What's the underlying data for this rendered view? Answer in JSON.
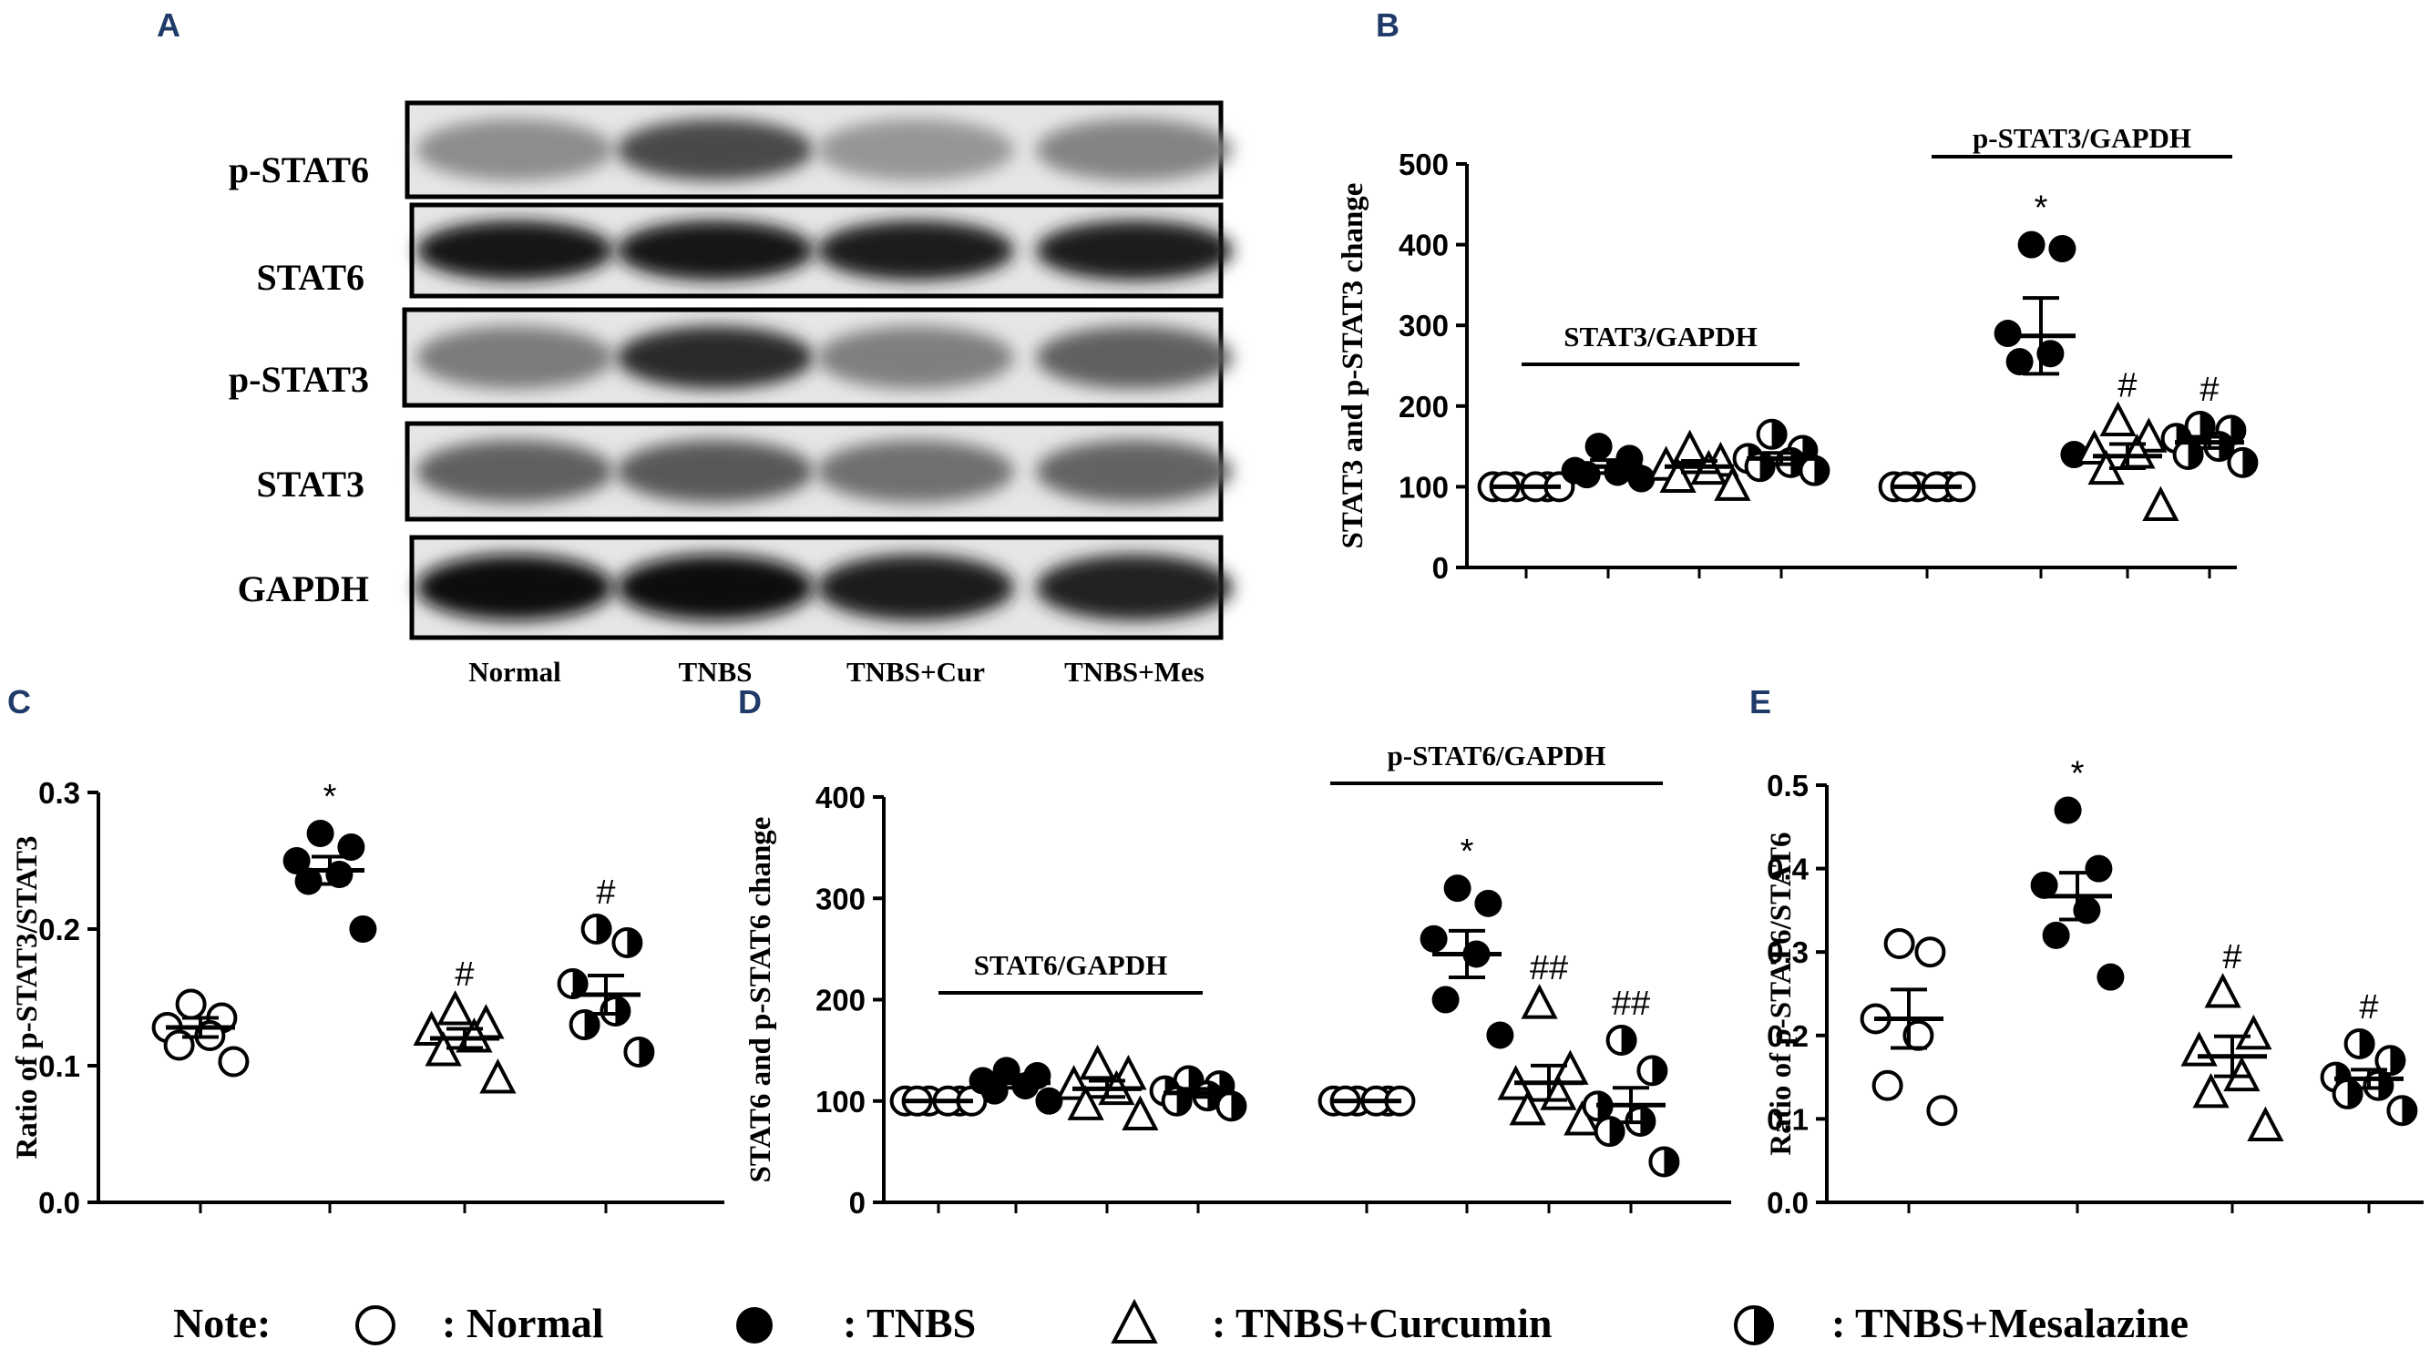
{
  "panels": {
    "A": "A",
    "B": "B",
    "C": "C",
    "D": "D",
    "E": "E"
  },
  "blot": {
    "rows": [
      {
        "label": "p-STAT6",
        "band_darkness": [
          0.42,
          0.72,
          0.38,
          0.46
        ]
      },
      {
        "label": "STAT6",
        "band_darkness": [
          0.95,
          0.95,
          0.92,
          0.93
        ]
      },
      {
        "label": "p-STAT3",
        "band_darkness": [
          0.5,
          0.85,
          0.48,
          0.62
        ]
      },
      {
        "label": "STAT3",
        "band_darkness": [
          0.62,
          0.65,
          0.55,
          0.6
        ]
      },
      {
        "label": "GAPDH",
        "band_darkness": [
          0.97,
          0.97,
          0.93,
          0.9
        ]
      }
    ],
    "lanes": [
      "Normal",
      "TNBS",
      "TNBS+Cur",
      "TNBS+Mes"
    ]
  },
  "legend": {
    "note": "Note:",
    "items": [
      {
        "marker": "open-circle",
        "label": ": Normal"
      },
      {
        "marker": "filled-circle",
        "label": ": TNBS"
      },
      {
        "marker": "open-triangle",
        "label": ": TNBS+Curcumin"
      },
      {
        "marker": "half-filled-circle",
        "label": ": TNBS+Mesalazine"
      }
    ]
  },
  "colors": {
    "ink": "#000000",
    "panel_letter": "#1f3a68"
  },
  "chart_data": [
    {
      "id": "B",
      "type": "scatter",
      "ylabel": "STAT3 and p-STAT3 change",
      "ylim": [
        0,
        500
      ],
      "yticks": [
        0,
        100,
        200,
        300,
        400,
        500
      ],
      "groups": [
        {
          "label": "STAT3/GAPDH",
          "members": [
            0,
            1,
            2,
            3
          ]
        },
        {
          "label": "p-STAT3/GAPDH",
          "members": [
            4,
            5,
            6,
            7
          ]
        }
      ],
      "series": [
        {
          "marker": "open-circle",
          "values": [
            100,
            100,
            100,
            100,
            100,
            100
          ],
          "mean": 100,
          "sem": 0
        },
        {
          "marker": "filled-circle",
          "values": [
            150,
            135,
            120,
            118,
            115,
            110
          ],
          "mean": 125,
          "sem": 8
        },
        {
          "marker": "open-triangle",
          "values": [
            145,
            130,
            125,
            120,
            110,
            100
          ],
          "mean": 125,
          "sem": 7
        },
        {
          "marker": "half-filled-circle",
          "values": [
            165,
            145,
            135,
            130,
            125,
            120
          ],
          "mean": 135,
          "sem": 7
        },
        {
          "marker": "open-circle",
          "values": [
            100,
            100,
            100,
            100,
            100,
            100
          ],
          "mean": 100,
          "sem": 0
        },
        {
          "marker": "filled-circle",
          "values": [
            400,
            395,
            290,
            265,
            255,
            140
          ],
          "mean": 287,
          "sem": 47,
          "sig": "*"
        },
        {
          "marker": "open-triangle",
          "values": [
            180,
            160,
            145,
            140,
            120,
            75
          ],
          "mean": 138,
          "sem": 15,
          "sig": "#"
        },
        {
          "marker": "half-filled-circle",
          "values": [
            175,
            170,
            160,
            150,
            140,
            130
          ],
          "mean": 155,
          "sem": 7,
          "sig": "#"
        }
      ]
    },
    {
      "id": "C",
      "type": "scatter",
      "ylabel": "Ratio of p-STAT3/STAT3",
      "ylim": [
        0,
        0.3
      ],
      "yticks": [
        "0.0",
        "0.1",
        "0.2",
        "0.3"
      ],
      "series": [
        {
          "marker": "open-circle",
          "values": [
            0.145,
            0.135,
            0.128,
            0.122,
            0.115,
            0.103
          ],
          "mean": 0.128,
          "sem": 0.007
        },
        {
          "marker": "filled-circle",
          "values": [
            0.27,
            0.26,
            0.25,
            0.24,
            0.235,
            0.2
          ],
          "mean": 0.243,
          "sem": 0.01,
          "sig": "*"
        },
        {
          "marker": "open-triangle",
          "values": [
            0.14,
            0.13,
            0.125,
            0.12,
            0.11,
            0.09
          ],
          "mean": 0.12,
          "sem": 0.007,
          "sig": "#"
        },
        {
          "marker": "half-filled-circle",
          "values": [
            0.2,
            0.19,
            0.16,
            0.14,
            0.13,
            0.11
          ],
          "mean": 0.152,
          "sem": 0.014,
          "sig": "#"
        }
      ]
    },
    {
      "id": "D",
      "type": "scatter",
      "ylabel": "STAT6 and p-STAT6 change",
      "ylim": [
        0,
        400
      ],
      "yticks": [
        0,
        100,
        200,
        300,
        400
      ],
      "groups": [
        {
          "label": "STAT6/GAPDH",
          "members": [
            0,
            1,
            2,
            3
          ]
        },
        {
          "label": "p-STAT6/GAPDH",
          "members": [
            4,
            5,
            6,
            7
          ]
        }
      ],
      "series": [
        {
          "marker": "open-circle",
          "values": [
            100,
            100,
            100,
            100,
            100,
            100
          ],
          "mean": 100,
          "sem": 0
        },
        {
          "marker": "filled-circle",
          "values": [
            130,
            125,
            120,
            115,
            110,
            100
          ],
          "mean": 118,
          "sem": 5
        },
        {
          "marker": "open-triangle",
          "values": [
            135,
            125,
            115,
            110,
            95,
            85
          ],
          "mean": 112,
          "sem": 8
        },
        {
          "marker": "half-filled-circle",
          "values": [
            120,
            115,
            110,
            105,
            100,
            95
          ],
          "mean": 108,
          "sem": 4
        },
        {
          "marker": "open-circle",
          "values": [
            100,
            100,
            100,
            100,
            100,
            100
          ],
          "mean": 100,
          "sem": 0
        },
        {
          "marker": "filled-circle",
          "values": [
            310,
            295,
            260,
            245,
            200,
            165
          ],
          "mean": 245,
          "sem": 23,
          "sig": "*"
        },
        {
          "marker": "open-triangle",
          "values": [
            195,
            130,
            115,
            105,
            90,
            80
          ],
          "mean": 118,
          "sem": 17,
          "sig": "##"
        },
        {
          "marker": "half-filled-circle",
          "values": [
            160,
            130,
            95,
            80,
            70,
            40
          ],
          "mean": 96,
          "sem": 17,
          "sig": "##"
        }
      ]
    },
    {
      "id": "E",
      "type": "scatter",
      "ylabel": "Ratio of p-STAT6/STAT6",
      "ylim": [
        0,
        0.5
      ],
      "yticks": [
        "0.0",
        "0.1",
        "0.2",
        "0.3",
        "0.4",
        "0.5"
      ],
      "series": [
        {
          "marker": "open-circle",
          "values": [
            0.31,
            0.3,
            0.22,
            0.2,
            0.14,
            0.11
          ],
          "mean": 0.22,
          "sem": 0.035
        },
        {
          "marker": "filled-circle",
          "values": [
            0.47,
            0.4,
            0.38,
            0.35,
            0.32,
            0.27
          ],
          "mean": 0.367,
          "sem": 0.028,
          "sig": "*"
        },
        {
          "marker": "open-triangle",
          "values": [
            0.25,
            0.2,
            0.18,
            0.15,
            0.13,
            0.09
          ],
          "mean": 0.175,
          "sem": 0.024,
          "sig": "#"
        },
        {
          "marker": "half-filled-circle",
          "values": [
            0.19,
            0.17,
            0.15,
            0.14,
            0.13,
            0.11
          ],
          "mean": 0.148,
          "sem": 0.011,
          "sig": "#"
        }
      ]
    }
  ]
}
